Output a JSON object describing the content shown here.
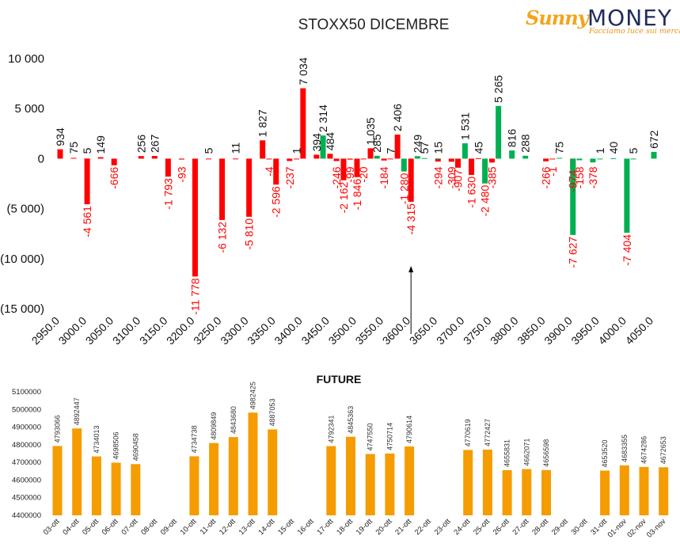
{
  "logo": {
    "brand_a": "Sunny",
    "brand_b": "MONEY",
    "tagline": "Facciamo luce sui mercati",
    "color_a": "#f3a41b",
    "color_b": "#1f2d5c"
  },
  "colors": {
    "negative": "#ff0000",
    "positive_red": "#ff0000",
    "green": "#00b050",
    "future": "#f59c00"
  },
  "chart_data": [
    {
      "type": "bar",
      "title": "STOXX50 DICEMBRE",
      "ylim": [
        -15000,
        10000
      ],
      "y_ticks": [
        {
          "v": 10000,
          "label": "10 000"
        },
        {
          "v": 5000,
          "label": "5 000"
        },
        {
          "v": 0,
          "label": "0"
        },
        {
          "v": -5000,
          "label": "(5 000)"
        },
        {
          "v": -10000,
          "label": "(10 000)"
        },
        {
          "v": -15000,
          "label": "(15 000)"
        }
      ],
      "x_ticks": [
        "2950.0",
        "3000.0",
        "3050.0",
        "3100.0",
        "3150.0",
        "3200.0",
        "3250.0",
        "3300.0",
        "3350.0",
        "3400.0",
        "3450.0",
        "3500.0",
        "3550.0",
        "3600.0",
        "3650.0",
        "3700.0",
        "3750.0",
        "3800.0",
        "3850.0",
        "3900.0",
        "3950.0",
        "4000.0",
        "4050.0"
      ],
      "annotation": {
        "type": "arrow",
        "x": 3600
      },
      "series": [
        {
          "color": "red",
          "points": [
            {
              "x": 2950,
              "y": 934,
              "label": "934"
            },
            {
              "x": 2975,
              "y": 75,
              "label": "75"
            },
            {
              "x": 3000,
              "y": 5,
              "label": "5"
            },
            {
              "x": 3000,
              "y": -4561,
              "label": "-4 561"
            },
            {
              "x": 3025,
              "y": 149,
              "label": "149"
            },
            {
              "x": 3050,
              "y": -666,
              "label": "-666"
            },
            {
              "x": 3100,
              "y": 256,
              "label": "256"
            },
            {
              "x": 3125,
              "y": 267,
              "label": "267"
            },
            {
              "x": 3150,
              "y": -1793,
              "label": "-1 793"
            },
            {
              "x": 3175,
              "y": -93,
              "label": "-93"
            },
            {
              "x": 3200,
              "y": -11778,
              "label": "-11 778"
            },
            {
              "x": 3225,
              "y": 5,
              "label": "5"
            },
            {
              "x": 3250,
              "y": -6132,
              "label": "-6 132"
            },
            {
              "x": 3275,
              "y": 11,
              "label": "11"
            },
            {
              "x": 3300,
              "y": -5810,
              "label": "-5 810"
            },
            {
              "x": 3325,
              "y": 1827,
              "label": "1 827"
            },
            {
              "x": 3337,
              "y": -4,
              "label": "-4"
            },
            {
              "x": 3350,
              "y": -2596,
              "label": "-2 596"
            },
            {
              "x": 3375,
              "y": -237,
              "label": "-237"
            },
            {
              "x": 3388,
              "y": 1,
              "label": "1"
            },
            {
              "x": 3400,
              "y": 7034,
              "label": "7 034"
            },
            {
              "x": 3425,
              "y": 394,
              "label": "394"
            },
            {
              "x": 3450,
              "y": 484,
              "label": "484"
            },
            {
              "x": 3462,
              "y": -246,
              "label": "-246"
            },
            {
              "x": 3475,
              "y": -2162,
              "label": "-2 162"
            },
            {
              "x": 3487,
              "y": -99,
              "label": "-99"
            },
            {
              "x": 3500,
              "y": -1846,
              "label": "-1 846"
            },
            {
              "x": 3512,
              "y": -20,
              "label": "-20"
            },
            {
              "x": 3525,
              "y": 1035,
              "label": "1 035"
            },
            {
              "x": 3550,
              "y": -184,
              "label": "-184"
            },
            {
              "x": 3562,
              "y": 7,
              "label": "7"
            },
            {
              "x": 3575,
              "y": 2406,
              "label": "2 406"
            },
            {
              "x": 3600,
              "y": -4315,
              "label": "-4 315"
            },
            {
              "x": 3650,
              "y": -294,
              "label": "-294"
            },
            {
              "x": 3675,
              "y": -309,
              "label": "-309"
            },
            {
              "x": 3687,
              "y": -907,
              "label": "-907"
            },
            {
              "x": 3712,
              "y": -1630,
              "label": "-1 630"
            },
            {
              "x": 3725,
              "y": 45,
              "label": "45"
            },
            {
              "x": 3750,
              "y": -385,
              "label": "-385"
            },
            {
              "x": 3850,
              "y": -266,
              "label": "-266"
            },
            {
              "x": 3862,
              "y": -1,
              "label": "-1"
            },
            {
              "x": 3900,
              "y": -974,
              "label": "-974"
            }
          ]
        },
        {
          "color": "green",
          "points": [
            {
              "x": 3437,
              "y": 2314,
              "label": "2 314"
            },
            {
              "x": 3537,
              "y": 285,
              "label": "285"
            },
            {
              "x": 3587,
              "y": -1280,
              "label": "-1 280"
            },
            {
              "x": 3612,
              "y": 249,
              "label": "249"
            },
            {
              "x": 3625,
              "y": 57,
              "label": "57"
            },
            {
              "x": 3650,
              "y": 15,
              "label": "15"
            },
            {
              "x": 3700,
              "y": 1531,
              "label": "1 531"
            },
            {
              "x": 3737,
              "y": -2480,
              "label": "-2 480"
            },
            {
              "x": 3762,
              "y": 5265,
              "label": "5 265"
            },
            {
              "x": 3787,
              "y": 816,
              "label": "816"
            },
            {
              "x": 3812,
              "y": 288,
              "label": "288"
            },
            {
              "x": 3875,
              "y": 75,
              "label": "75"
            },
            {
              "x": 3900,
              "y": -7627,
              "label": "-7 627"
            },
            {
              "x": 3912,
              "y": -158,
              "label": "-158"
            },
            {
              "x": 3937,
              "y": -378,
              "label": "-378"
            },
            {
              "x": 3950,
              "y": 1,
              "label": "1"
            },
            {
              "x": 3975,
              "y": 40,
              "label": "40"
            },
            {
              "x": 4000,
              "y": -7404,
              "label": "-7 404"
            },
            {
              "x": 4012,
              "y": 5,
              "label": "5"
            },
            {
              "x": 4050,
              "y": 672,
              "label": "672"
            }
          ]
        }
      ]
    },
    {
      "type": "bar",
      "title": "FUTURE",
      "ylim": [
        4400000,
        5100000
      ],
      "y_ticks": [
        {
          "v": 5100000,
          "label": "5100000"
        },
        {
          "v": 5000000,
          "label": "5000000"
        },
        {
          "v": 4900000,
          "label": "4900000"
        },
        {
          "v": 4800000,
          "label": "4800000"
        },
        {
          "v": 4700000,
          "label": "4700000"
        },
        {
          "v": 4600000,
          "label": "4600000"
        },
        {
          "v": 4500000,
          "label": "4500000"
        },
        {
          "v": 4400000,
          "label": "4400000"
        }
      ],
      "categories": [
        "03-ott",
        "04-ott",
        "05-ott",
        "06-ott",
        "07-ott",
        "08-ott",
        "09-ott",
        "10-ott",
        "11-ott",
        "12-ott",
        "13-ott",
        "14-ott",
        "15-ott",
        "16-ott",
        "17-ott",
        "18-ott",
        "19-ott",
        "20-ott",
        "21-ott",
        "22-ott",
        "23-ott",
        "24-ott",
        "25-ott",
        "26-ott",
        "27-ott",
        "28-ott",
        "29-ott",
        "30-ott",
        "31-ott",
        "01-nov",
        "02-nov",
        "03-nov"
      ],
      "values": [
        4793066,
        4892447,
        4734013,
        4698506,
        4690458,
        null,
        null,
        4734738,
        4809849,
        4843680,
        4982425,
        4887053,
        null,
        null,
        4792341,
        4845363,
        4747550,
        4750714,
        4790614,
        null,
        null,
        4770619,
        4772427,
        4655831,
        4662071,
        4656598,
        null,
        null,
        4653520,
        4683355,
        4674286,
        4672653
      ]
    }
  ]
}
